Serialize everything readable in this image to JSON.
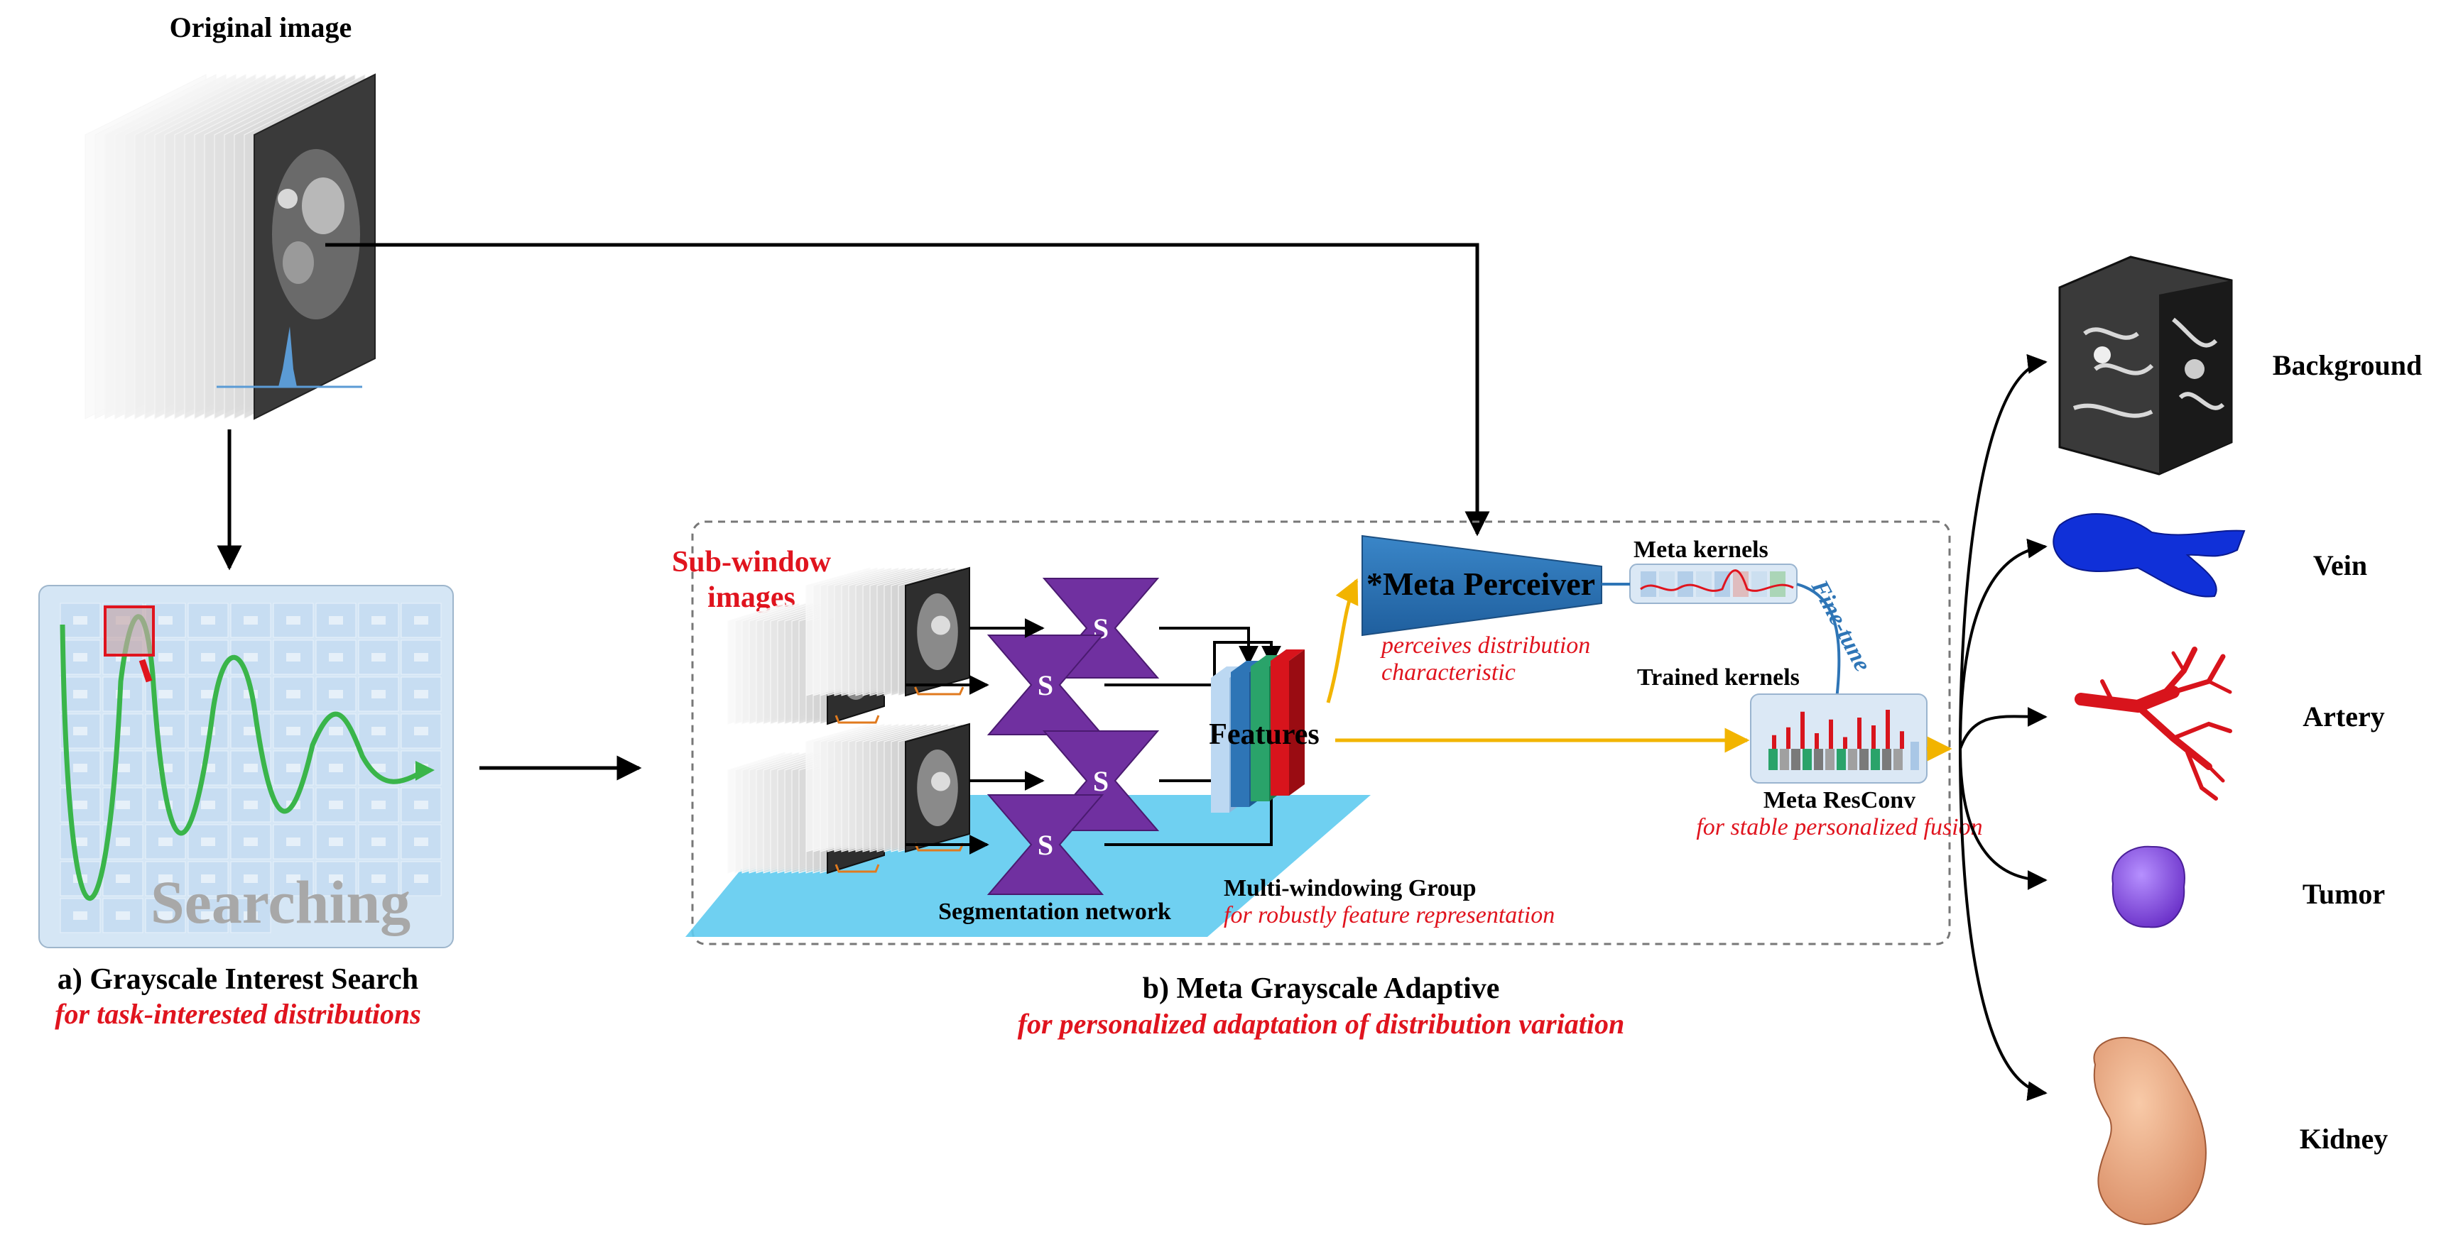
{
  "original_image": {
    "title": "Original image"
  },
  "grayscale_search": {
    "watermark": "Searching",
    "title": "a) Grayscale Interest Search",
    "subtitle": "for task-interested distributions"
  },
  "meta_adaptive": {
    "title": "b) Meta Grayscale Adaptive",
    "subtitle": "for personalized adaptation of distribution variation",
    "sub_window_label": [
      "Sub-window",
      "images"
    ],
    "s_label": "S",
    "segmentation_network": "Segmentation network",
    "features": "Features",
    "multi_windowing": {
      "title": "Multi-windowing Group",
      "subtitle": "for robustly feature representation"
    },
    "meta_perceiver": {
      "title": "*Meta Perceiver",
      "caption": [
        "perceives distribution",
        "characteristic"
      ]
    },
    "meta_kernels": "Meta kernels",
    "fine_tune": "Fine-tune",
    "trained_kernels": "Trained kernels",
    "meta_resconv": {
      "title": "Meta ResConv",
      "subtitle": "for stable personalized fusion"
    }
  },
  "outputs": [
    {
      "label": "Background"
    },
    {
      "label": "Vein"
    },
    {
      "label": "Artery"
    },
    {
      "label": "Tumor"
    },
    {
      "label": "Kidney"
    }
  ],
  "colors": {
    "accent_red": "#e0141e",
    "search_green": "#3ab54a",
    "perceiver_blue": "#2e75b6",
    "segnet_purple": "#7030a0",
    "flow_yellow": "#f2b400",
    "floor_cyan": "#5fcbf0",
    "vein_blue": "#1030d8",
    "artery_red": "#d8141c",
    "tumor_purple": "#8a4fe6",
    "kidney_peach": "#f0b08a"
  }
}
